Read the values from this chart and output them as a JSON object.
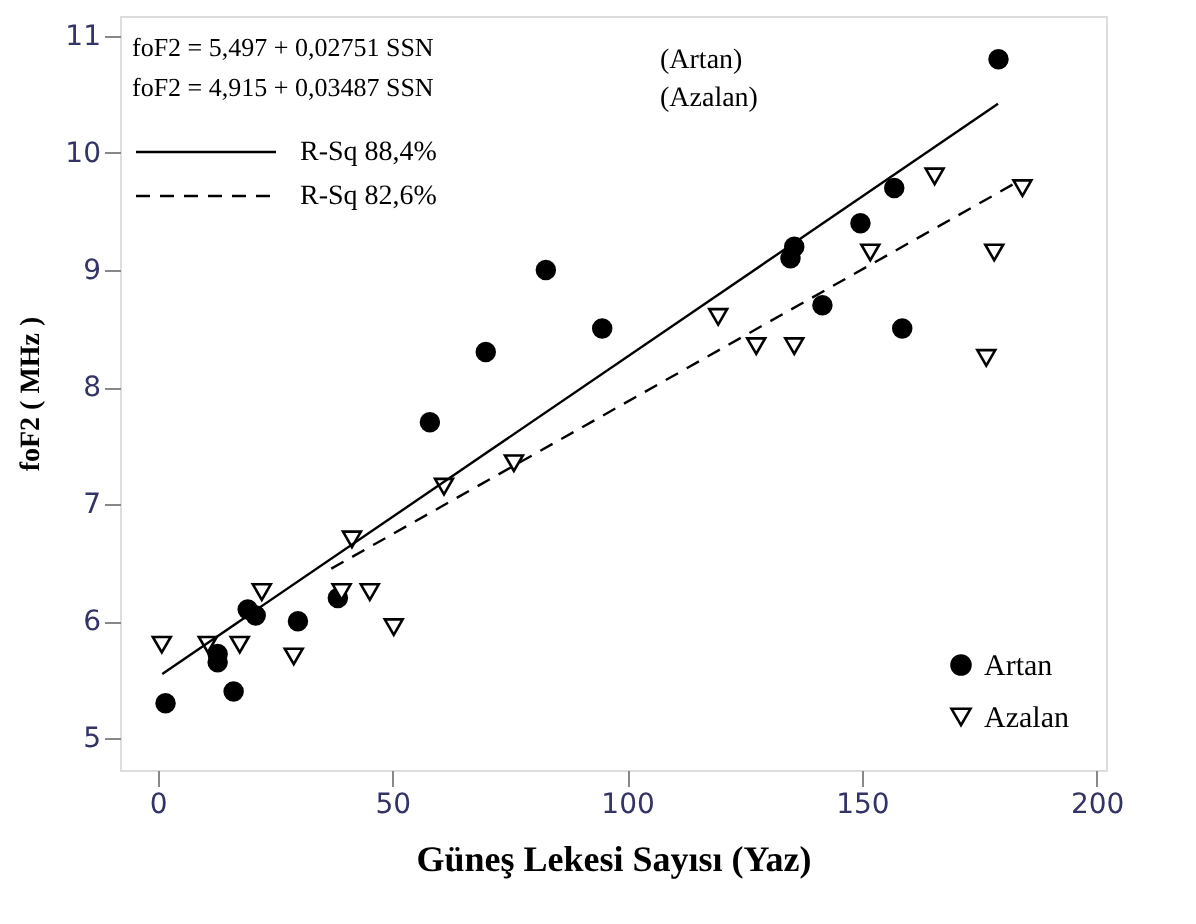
{
  "chart_data": {
    "type": "scatter",
    "xlabel": "Güneş Lekesi Sayısı (Yaz)",
    "ylabel": "foF2 ( MHz )",
    "xlim": [
      -8,
      202
    ],
    "ylim": [
      4.73,
      11.17
    ],
    "xticks": [
      0,
      50,
      100,
      150,
      200
    ],
    "yticks": [
      5,
      6,
      7,
      8,
      9,
      10,
      11
    ],
    "grid": false,
    "legend": "bottom right",
    "series": [
      {
        "name": "Artan",
        "marker": "circle",
        "color": "#000000",
        "x": [
          1.7,
          12.8,
          12.8,
          16.2,
          19.2,
          20.9,
          29.9,
          38.4,
          58,
          69.9,
          82.7,
          94.7,
          134.8,
          135.6,
          141.6,
          149.7,
          156.9,
          158.6,
          179.1
        ],
        "values": [
          5.3,
          5.72,
          5.65,
          5.4,
          6.1,
          6.05,
          6.0,
          6.2,
          7.7,
          8.3,
          9.0,
          8.5,
          9.1,
          9.2,
          8.7,
          9.4,
          9.7,
          8.5,
          10.8
        ]
      },
      {
        "name": "Azalan",
        "marker": "triangle",
        "color": "#000000",
        "x": [
          0.9,
          10.7,
          17.5,
          22.2,
          29,
          39.2,
          41.4,
          45.2,
          50.3,
          61,
          75.9,
          119.4,
          127.5,
          135.6,
          151.8,
          165.5,
          176.5,
          178.2,
          184.2
        ],
        "values": [
          5.8,
          5.8,
          5.8,
          6.25,
          5.7,
          6.25,
          6.7,
          6.25,
          5.95,
          7.15,
          7.35,
          8.6,
          8.35,
          8.35,
          9.15,
          9.8,
          8.25,
          9.15,
          9.7
        ]
      },
      {
        "name": "R-Sq  88,4%",
        "type": "line",
        "line_style": "solid",
        "marker": "none",
        "color": "#000000",
        "x": [
          1,
          179
        ],
        "values": [
          5.55,
          10.42
        ]
      },
      {
        "name": "R-Sq  82,6%",
        "type": "line",
        "line_style": "dashed",
        "marker": "none",
        "color": "#000000",
        "x": [
          37,
          183
        ],
        "values": [
          6.45,
          9.75
        ]
      }
    ],
    "annotations": [
      "foF2 =  5,497 + 0,02751 SSN",
      "foF2 =  4,915 + 0,03487 SSN",
      "(Artan)",
      "(Azalan)"
    ]
  }
}
